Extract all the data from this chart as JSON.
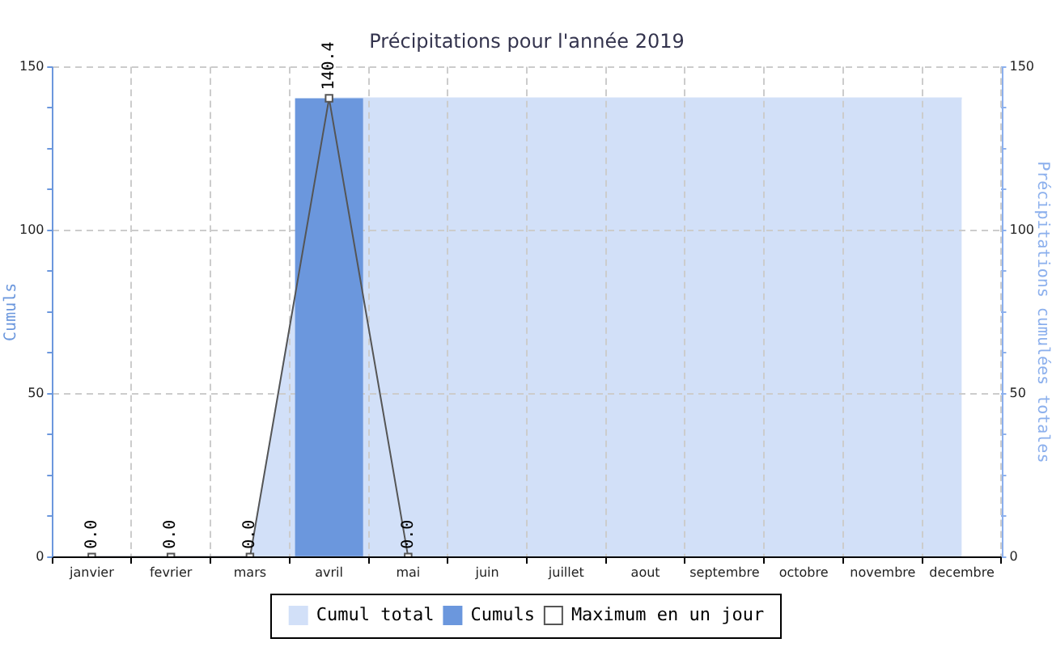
{
  "chart_data": {
    "type": "bar",
    "title": "Précipitations pour l'année 2019",
    "ylabel": "Cumuls",
    "y2label": "Précipitations cumulées totales",
    "categories": [
      "janvier",
      "fevrier",
      "mars",
      "avril",
      "mai",
      "juin",
      "juillet",
      "aout",
      "septembre",
      "octobre",
      "novembre",
      "decembre"
    ],
    "series": [
      {
        "name": "Cumul total",
        "type": "area",
        "axis": "y2",
        "color": "#d2e0f8",
        "values": [
          0,
          0,
          0,
          140.4,
          140.4,
          140.4,
          140.4,
          140.4,
          140.4,
          140.4,
          140.4,
          140.4
        ]
      },
      {
        "name": "Cumuls",
        "color": "#6b97dd",
        "values": [
          null,
          null,
          null,
          140.4,
          null,
          null,
          null,
          null,
          null,
          null,
          null,
          null
        ]
      },
      {
        "name": "Maximum en un jour",
        "type": "line",
        "color": "#555555",
        "marker": "square",
        "values": [
          0,
          0,
          0,
          140.4,
          0,
          null,
          null,
          null,
          null,
          null,
          null,
          null
        ],
        "value_labels": [
          "0.0",
          "0.0",
          "0.0",
          "140.4",
          "0.0",
          null,
          null,
          null,
          null,
          null,
          null,
          null
        ]
      }
    ],
    "ylim": [
      0,
      150
    ],
    "yticks": [
      0,
      {
        "value": 12.5,
        "label": null
      },
      {
        "value": 25,
        "label": null
      },
      {
        "value": 37.5,
        "label": null
      },
      50,
      {
        "value": 62.5,
        "label": null
      },
      {
        "value": 75,
        "label": null
      },
      {
        "value": 87.5,
        "label": null
      },
      100,
      {
        "value": 112.5,
        "label": null
      },
      {
        "value": 125,
        "label": null
      },
      {
        "value": 137.5,
        "label": null
      },
      150
    ],
    "y2lim": [
      0,
      150
    ],
    "y2ticks": [
      0,
      {
        "value": 12.5,
        "label": null
      },
      {
        "value": 25,
        "label": null
      },
      {
        "value": 37.5,
        "label": null
      },
      50,
      {
        "value": 62.5,
        "label": null
      },
      {
        "value": 75,
        "label": null
      },
      {
        "value": 87.5,
        "label": null
      },
      100,
      {
        "value": 112.5,
        "label": null
      },
      {
        "value": 125,
        "label": null
      },
      {
        "value": 137.5,
        "label": null
      },
      150
    ],
    "grid": true,
    "legend": "bottom"
  }
}
